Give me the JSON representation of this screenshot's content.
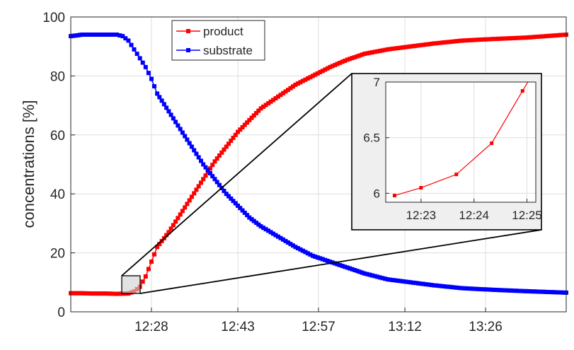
{
  "chart_data": {
    "type": "scatter",
    "ylabel": "concentrations [%]",
    "xlabel": "",
    "title": "",
    "x_tick_labels": [
      "12:28",
      "12:43",
      "12:57",
      "13:12",
      "13:26"
    ],
    "y_tick_labels": [
      "0",
      "20",
      "40",
      "60",
      "80",
      "100"
    ],
    "xlim": [
      "12:14",
      "13:40"
    ],
    "ylim": [
      0,
      100
    ],
    "grid": true,
    "legend_position": "top-center",
    "line_style": "line with square markers",
    "series": [
      {
        "name": "product",
        "color": "#ff0000",
        "x": [
          "12:14",
          "12:16",
          "12:18",
          "12:20",
          "12:22",
          "12:24",
          "12:25",
          "12:26",
          "12:27",
          "12:28",
          "12:29",
          "12:31",
          "12:33",
          "12:35",
          "12:37",
          "12:39",
          "12:41",
          "12:43",
          "12:45",
          "12:47",
          "12:50",
          "12:53",
          "12:56",
          "12:59",
          "13:02",
          "13:05",
          "13:09",
          "13:13",
          "13:17",
          "13:22",
          "13:27",
          "13:33",
          "13:40"
        ],
        "y": [
          6.3,
          6.3,
          6.2,
          6.2,
          6.1,
          6.2,
          6.9,
          8.5,
          12,
          17,
          22,
          27,
          33,
          39,
          45,
          51,
          56,
          61,
          65,
          69,
          73,
          77,
          80,
          83,
          85.5,
          87.5,
          89,
          90,
          91,
          92,
          92.5,
          93,
          94
        ]
      },
      {
        "name": "substrate",
        "color": "#0000ff",
        "x": [
          "12:14",
          "12:16",
          "12:18",
          "12:20",
          "12:22",
          "12:23",
          "12:24",
          "12:25",
          "12:26",
          "12:27",
          "12:28",
          "12:29",
          "12:31",
          "12:33",
          "12:35",
          "12:37",
          "12:39",
          "12:41",
          "12:43",
          "12:45",
          "12:47",
          "12:50",
          "12:53",
          "12:56",
          "12:59",
          "13:02",
          "13:05",
          "13:09",
          "13:13",
          "13:17",
          "13:22",
          "13:27",
          "13:33",
          "13:40"
        ],
        "y": [
          93.5,
          94,
          94,
          94,
          94,
          93.5,
          92,
          89,
          86,
          83,
          79,
          74,
          68,
          62,
          56,
          50,
          45,
          40,
          36,
          32,
          29,
          25.5,
          22,
          19,
          17,
          15,
          13,
          11,
          10,
          9,
          8,
          7.5,
          7,
          6.5
        ]
      }
    ],
    "inset": {
      "series_name": "product",
      "x": [
        "12:22:30",
        "12:23:00",
        "12:23:40",
        "12:24:20",
        "12:24:55"
      ],
      "y": [
        5.98,
        6.05,
        6.17,
        6.45,
        6.92
      ],
      "x_tick_labels": [
        "12:23",
        "12:24",
        "12:25"
      ],
      "y_tick_labels": [
        "6",
        "6.5",
        "7"
      ],
      "xlim": [
        "12:22:20",
        "12:25:10"
      ],
      "ylim": [
        5.92,
        7
      ]
    }
  }
}
